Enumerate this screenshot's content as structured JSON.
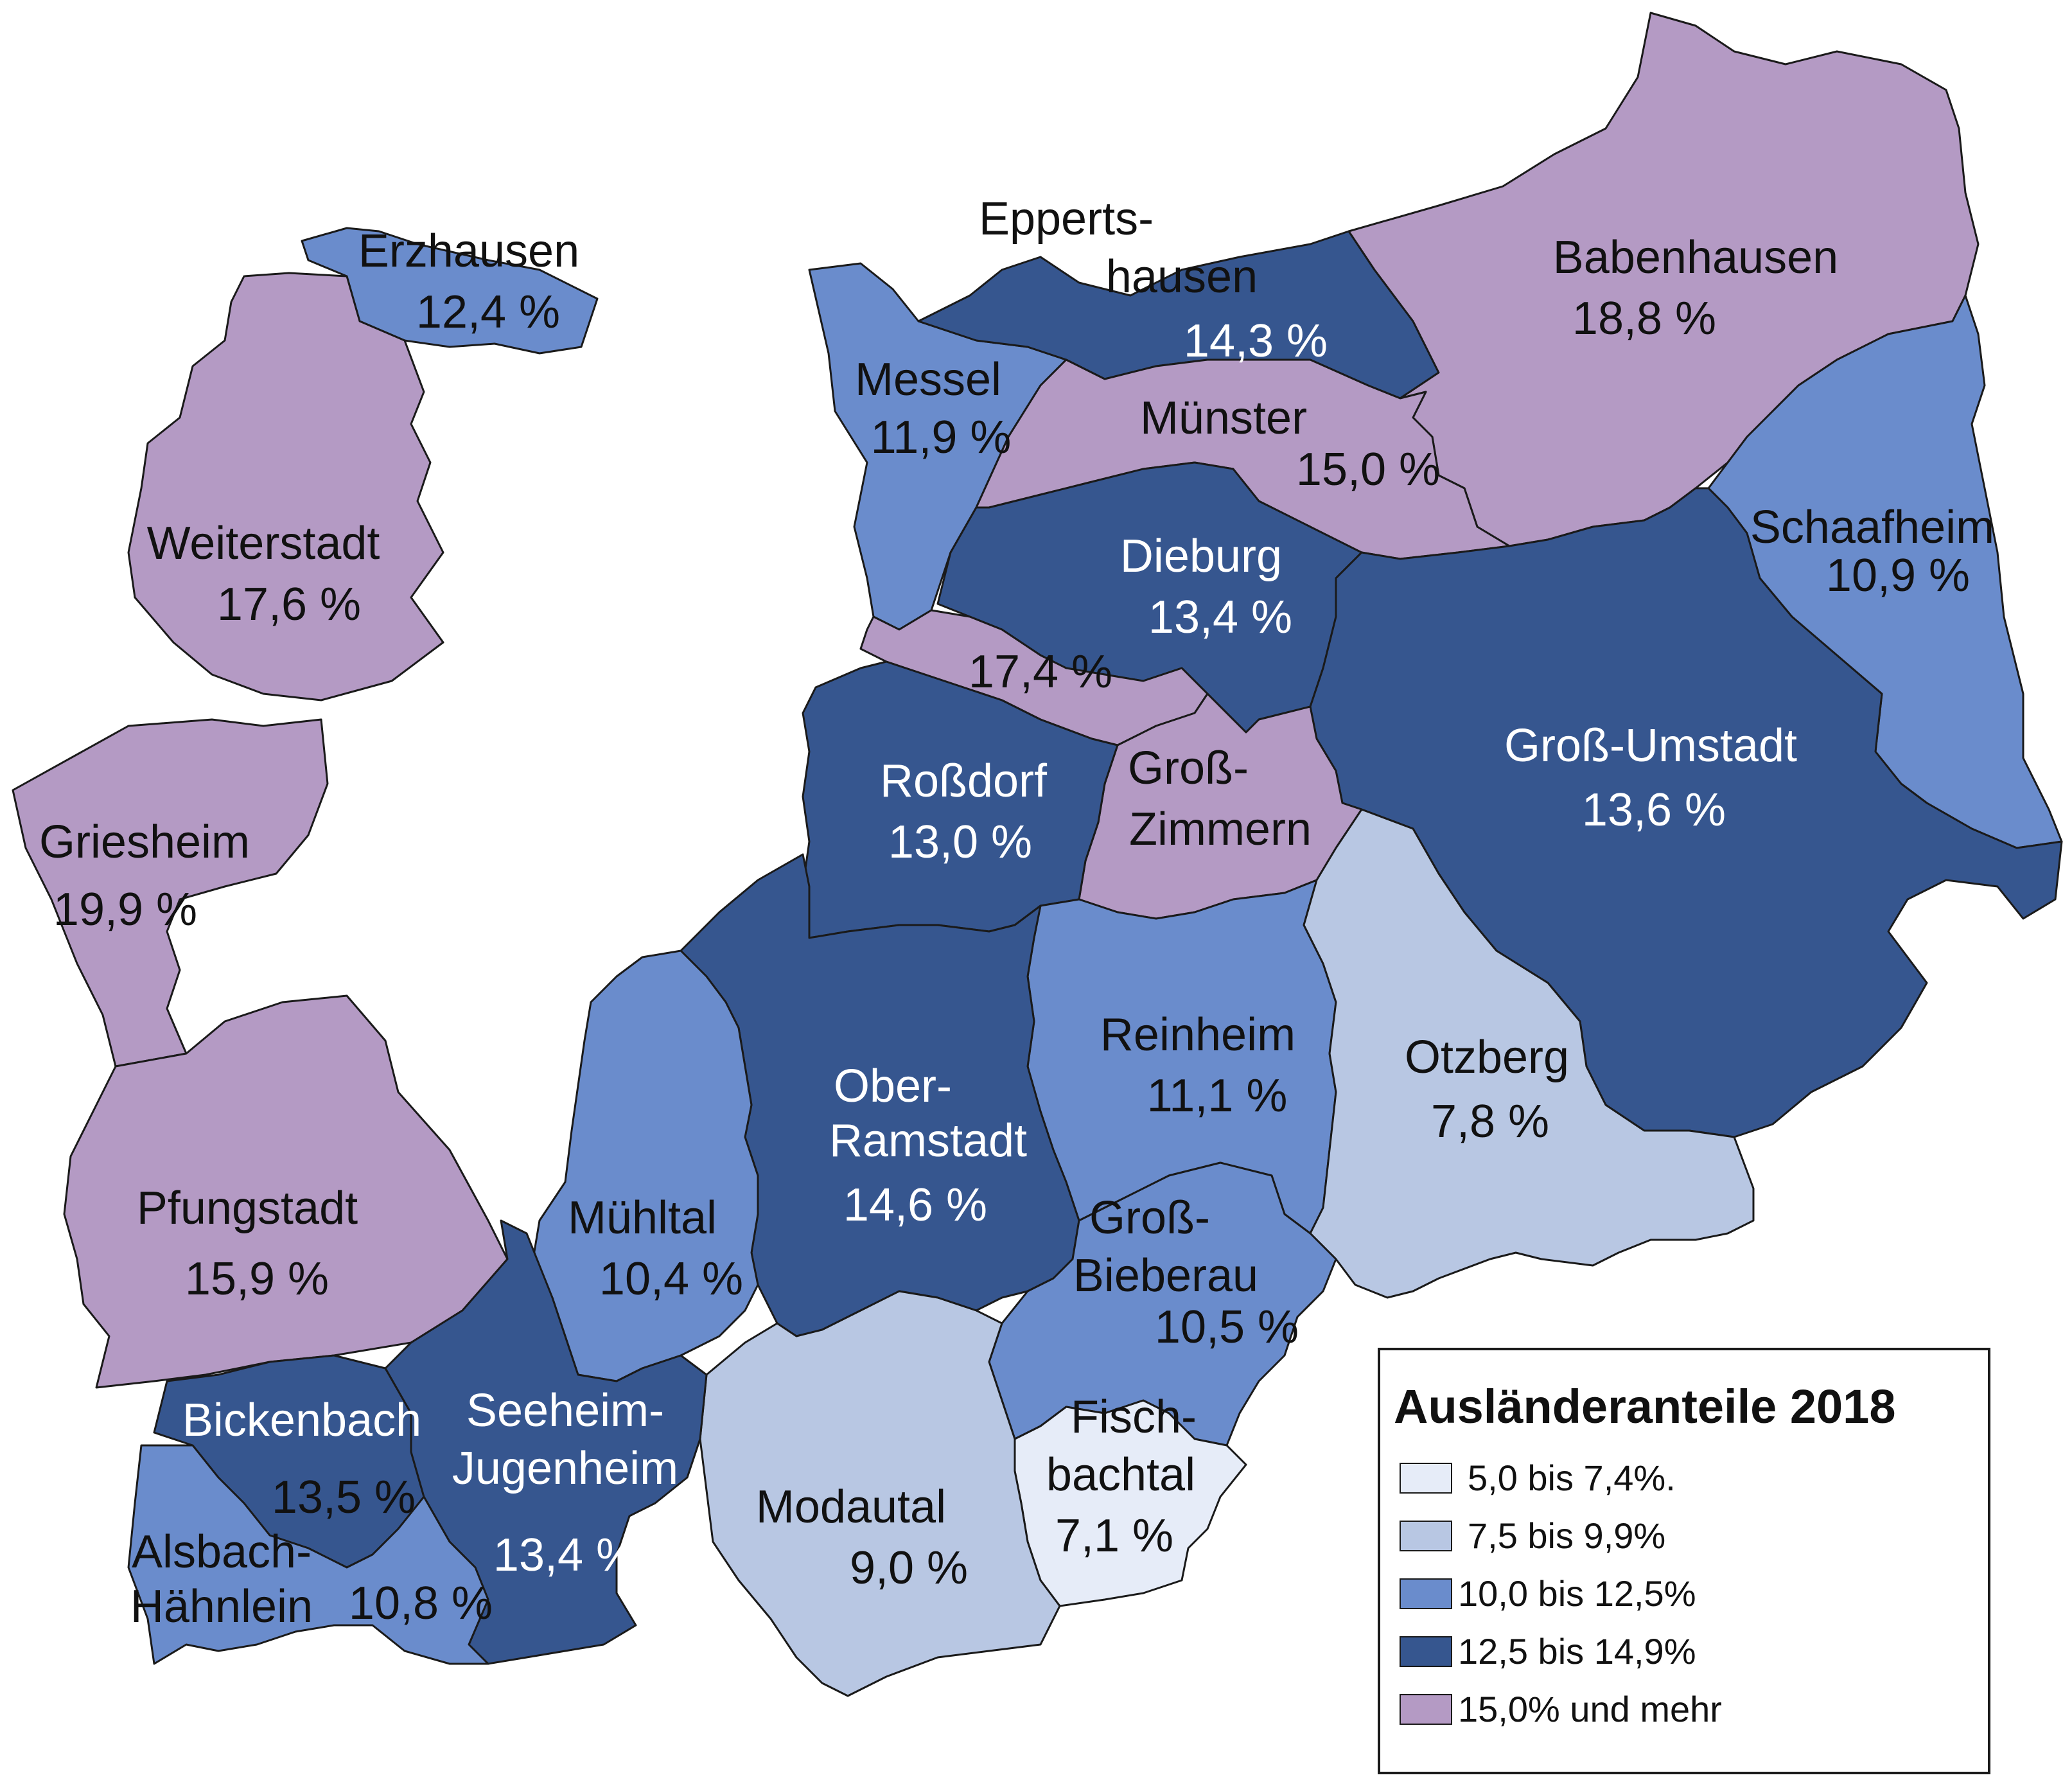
{
  "colors": {
    "class_1": "#e6ecf8",
    "class_2": "#b8c7e3",
    "class_3": "#6a8ccc",
    "class_4": "#36568f",
    "class_5": "#b49ac4"
  },
  "regions": {
    "erzhausen": {
      "name": "Erzhausen",
      "value": "12,4 %",
      "class": "class_3"
    },
    "weiterstadt": {
      "name": "Weiterstadt",
      "value": "17,6 %",
      "class": "class_5"
    },
    "griesheim": {
      "name": "Griesheim",
      "value": "19,9 %",
      "class": "class_5"
    },
    "pfungstadt": {
      "name": "Pfungstadt",
      "value": "15,9 %",
      "class": "class_5"
    },
    "eppertshausen": {
      "name_1": "Epperts-",
      "name_2": "hausen",
      "value": "14,3 %",
      "class": "class_4"
    },
    "messel": {
      "name": "Messel",
      "value": "11,9 %",
      "class": "class_3"
    },
    "muenster": {
      "name": "Münster",
      "value": "15,0 %",
      "class": "class_5"
    },
    "babenhausen": {
      "name": "Babenhausen",
      "value": "18,8 %",
      "class": "class_5"
    },
    "schaafheim": {
      "name": "Schaafheim",
      "value": "10,9 %",
      "class": "class_3"
    },
    "dieburg": {
      "name": "Dieburg",
      "value": "13,4 %",
      "class": "class_4"
    },
    "unnamed_strip": {
      "value": "17,4 %",
      "class": "class_5"
    },
    "rossdorf": {
      "name": "Roßdorf",
      "value": "13,0 %",
      "class": "class_4"
    },
    "gross_zimmern": {
      "name_1": "Groß-",
      "name_2": "Zimmern",
      "class": "class_5"
    },
    "gross_umstadt": {
      "name": "Groß-Umstadt",
      "value": "13,6 %",
      "class": "class_4"
    },
    "reinheim": {
      "name": "Reinheim",
      "value": "11,1 %",
      "class": "class_3"
    },
    "otzberg": {
      "name": "Otzberg",
      "value": "7,8 %",
      "class": "class_2"
    },
    "ober_ramstadt": {
      "name_1": "Ober-",
      "name_2": "Ramstadt",
      "value": "14,6 %",
      "class": "class_4"
    },
    "muehltal": {
      "name": "Mühltal",
      "value": "10,4 %",
      "class": "class_3"
    },
    "gross_bieberau": {
      "name_1": "Groß-",
      "name_2": "Bieberau",
      "value": "10,5 %",
      "class": "class_3"
    },
    "fischbachtal": {
      "name_1": "Fisch-",
      "name_2": "bachtal",
      "value": "7,1 %",
      "class": "class_1"
    },
    "modautal": {
      "name": "Modautal",
      "value": "9,0 %",
      "class": "class_2"
    },
    "bickenbach": {
      "name": "Bickenbach",
      "value": "13,5 %",
      "class": "class_4"
    },
    "seeheim_jugenheim": {
      "name_1": "Seeheim-",
      "name_2": "Jugenheim",
      "value": "13,4 %",
      "class": "class_4"
    },
    "alsbach_haehnlein": {
      "name_1": "Alsbach-",
      "name_2": "Hähnlein",
      "value": "10,8 %",
      "class": "class_3"
    }
  },
  "legend": {
    "title": "Ausländeranteile 2018",
    "items": [
      {
        "label": "5,0 bis 7,4%.",
        "class": "class_1"
      },
      {
        "label": "7,5 bis 9,9%",
        "class": "class_2"
      },
      {
        "label": "10,0 bis 12,5%",
        "class": "class_3"
      },
      {
        "label": "12,5 bis 14,9%",
        "class": "class_4"
      },
      {
        "label": "15,0% und mehr",
        "class": "class_5"
      }
    ]
  }
}
